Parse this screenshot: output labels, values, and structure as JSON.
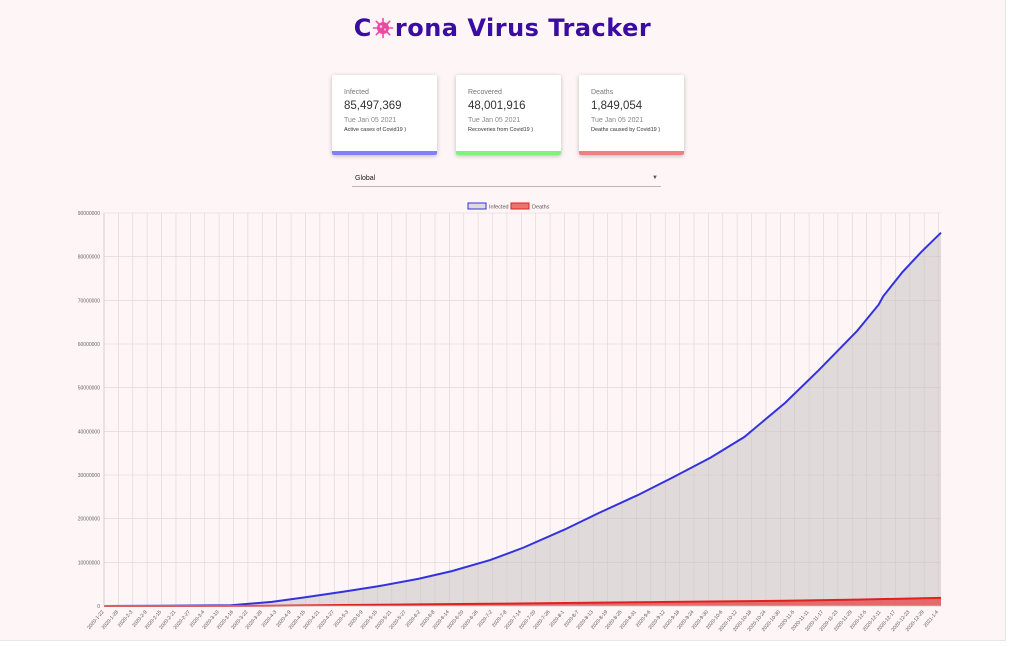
{
  "app": {
    "title": "Corona Virus Tracker",
    "title_first_letter": "C",
    "title_rest": "rona Virus Tracker",
    "title_color": "#3a0ca3",
    "logo_icon": "virus-icon"
  },
  "cards": [
    {
      "label": "Infected",
      "value": "85,497,369",
      "date": "Tue Jan 05 2021",
      "desc": "Active cases of Covid19 )",
      "color": "#8080ff"
    },
    {
      "label": "Recovered",
      "value": "48,001,916",
      "date": "Tue Jan 05 2021",
      "desc": "Recoveries from Covid19 )",
      "color": "#80f080"
    },
    {
      "label": "Deaths",
      "value": "1,849,054",
      "date": "Tue Jan 05 2021",
      "desc": "Deaths caused by Covid19 )",
      "color": "#f08080"
    }
  ],
  "country_select": {
    "value": "Global"
  },
  "chart_data": {
    "type": "line",
    "legend_position": "top",
    "grid": true,
    "ylim": [
      0,
      90000000
    ],
    "yticks": [
      0,
      10000000,
      20000000,
      30000000,
      40000000,
      50000000,
      60000000,
      70000000,
      80000000,
      90000000
    ],
    "x_start": "2020-01-22",
    "x_end": "2021-01-05",
    "x_tick_step_days": 6,
    "series": [
      {
        "name": "Infected",
        "stroke": "#3333dd",
        "fill": "rgba(200,195,195,0.55)",
        "points": [
          [
            "2020-01-22",
            555
          ],
          [
            "2020-02-15",
            69000
          ],
          [
            "2020-03-15",
            170000
          ],
          [
            "2020-04-01",
            950000
          ],
          [
            "2020-04-15",
            2000000
          ],
          [
            "2020-05-01",
            3300000
          ],
          [
            "2020-05-15",
            4500000
          ],
          [
            "2020-06-01",
            6200000
          ],
          [
            "2020-06-15",
            8000000
          ],
          [
            "2020-07-01",
            10500000
          ],
          [
            "2020-07-15",
            13400000
          ],
          [
            "2020-08-01",
            17500000
          ],
          [
            "2020-08-15",
            21200000
          ],
          [
            "2020-09-01",
            25500000
          ],
          [
            "2020-09-15",
            29400000
          ],
          [
            "2020-10-01",
            34000000
          ],
          [
            "2020-10-15",
            38700000
          ],
          [
            "2020-11-01",
            46500000
          ],
          [
            "2020-11-15",
            54000000
          ],
          [
            "2020-12-01",
            63000000
          ],
          [
            "2020-12-10",
            69000000
          ],
          [
            "2020-12-12",
            71000000
          ],
          [
            "2020-12-20",
            76500000
          ],
          [
            "2020-12-28",
            81200000
          ],
          [
            "2021-01-05",
            85497369
          ]
        ]
      },
      {
        "name": "Deaths",
        "stroke": "#dd2222",
        "fill": "rgba(230,70,70,0.75)",
        "points": [
          [
            "2020-01-22",
            17
          ],
          [
            "2020-03-01",
            3000
          ],
          [
            "2020-04-01",
            50000
          ],
          [
            "2020-05-01",
            235000
          ],
          [
            "2020-06-01",
            375000
          ],
          [
            "2020-07-01",
            515000
          ],
          [
            "2020-08-01",
            690000
          ],
          [
            "2020-09-01",
            860000
          ],
          [
            "2020-10-01",
            1020000
          ],
          [
            "2020-11-01",
            1200000
          ],
          [
            "2020-12-01",
            1470000
          ],
          [
            "2021-01-05",
            1849054
          ]
        ]
      }
    ]
  }
}
